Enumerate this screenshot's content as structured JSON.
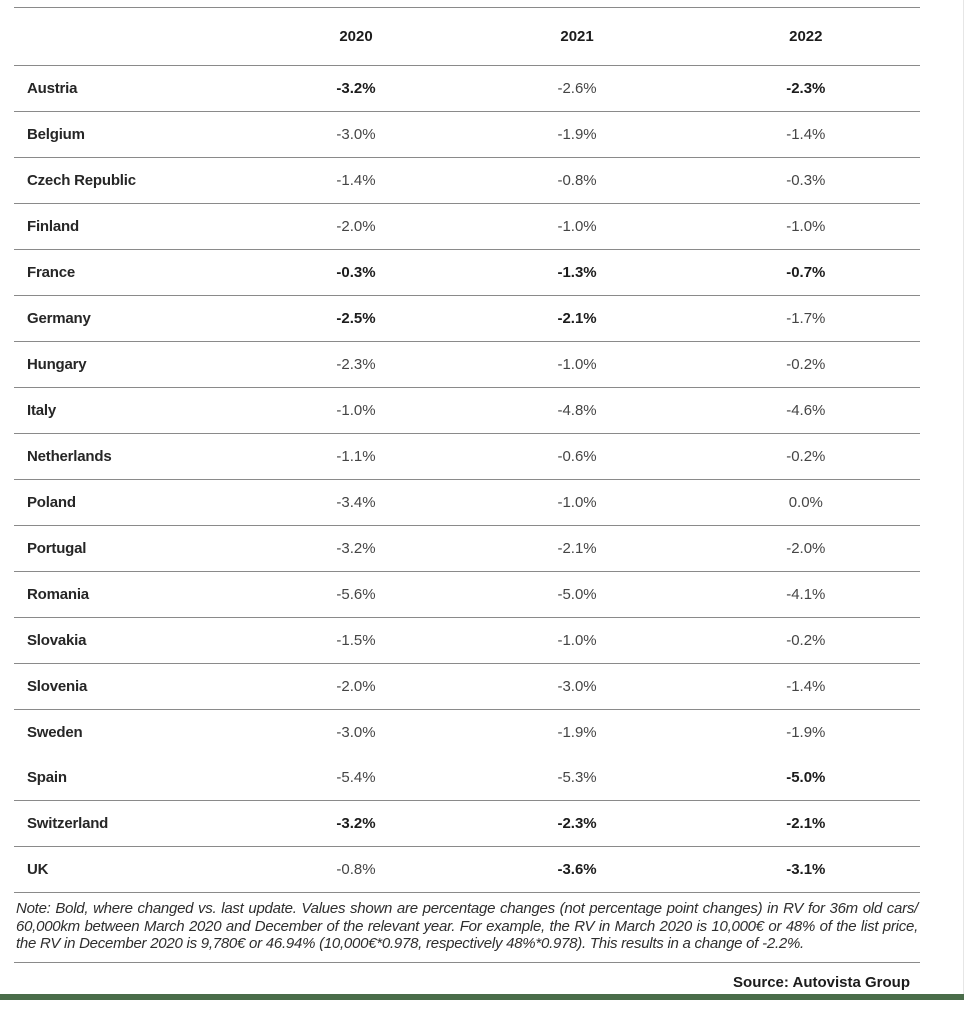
{
  "table": {
    "columns": [
      "2020",
      "2021",
      "2022"
    ],
    "rows": [
      {
        "country": "Austria",
        "values": [
          "-3.2%",
          "-2.6%",
          "-2.3%"
        ],
        "bold": [
          true,
          false,
          true
        ]
      },
      {
        "country": "Belgium",
        "values": [
          "-3.0%",
          "-1.9%",
          "-1.4%"
        ],
        "bold": [
          false,
          false,
          false
        ]
      },
      {
        "country": "Czech Republic",
        "values": [
          "-1.4%",
          "-0.8%",
          "-0.3%"
        ],
        "bold": [
          false,
          false,
          false
        ]
      },
      {
        "country": "Finland",
        "values": [
          "-2.0%",
          "-1.0%",
          "-1.0%"
        ],
        "bold": [
          false,
          false,
          false
        ]
      },
      {
        "country": "France",
        "values": [
          "-0.3%",
          "-1.3%",
          "-0.7%"
        ],
        "bold": [
          true,
          true,
          true
        ]
      },
      {
        "country": "Germany",
        "values": [
          "-2.5%",
          "-2.1%",
          "-1.7%"
        ],
        "bold": [
          true,
          true,
          false
        ]
      },
      {
        "country": "Hungary",
        "values": [
          "-2.3%",
          "-1.0%",
          "-0.2%"
        ],
        "bold": [
          false,
          false,
          false
        ]
      },
      {
        "country": "Italy",
        "values": [
          "-1.0%",
          "-4.8%",
          "-4.6%"
        ],
        "bold": [
          false,
          false,
          false
        ]
      },
      {
        "country": "Netherlands",
        "values": [
          "-1.1%",
          "-0.6%",
          "-0.2%"
        ],
        "bold": [
          false,
          false,
          false
        ]
      },
      {
        "country": "Poland",
        "values": [
          "-3.4%",
          "-1.0%",
          "0.0%"
        ],
        "bold": [
          false,
          false,
          false
        ]
      },
      {
        "country": "Portugal",
        "values": [
          "-3.2%",
          "-2.1%",
          "-2.0%"
        ],
        "bold": [
          false,
          false,
          false
        ]
      },
      {
        "country": "Romania",
        "values": [
          "-5.6%",
          "-5.0%",
          "-4.1%"
        ],
        "bold": [
          false,
          false,
          false
        ]
      },
      {
        "country": "Slovakia",
        "values": [
          "-1.5%",
          "-1.0%",
          "-0.2%"
        ],
        "bold": [
          false,
          false,
          false
        ]
      },
      {
        "country": "Slovenia",
        "values": [
          "-2.0%",
          "-3.0%",
          "-1.4%"
        ],
        "bold": [
          false,
          false,
          false
        ]
      },
      {
        "country": "Sweden",
        "values": [
          "-3.0%",
          "-1.9%",
          "-1.9%"
        ],
        "bold": [
          false,
          false,
          false
        ]
      },
      {
        "country": "Spain",
        "values": [
          "-5.4%",
          "-5.3%",
          "-5.0%"
        ],
        "bold": [
          false,
          false,
          true
        ],
        "no_separator_above": true
      },
      {
        "country": "Switzerland",
        "values": [
          "-3.2%",
          "-2.3%",
          "-2.1%"
        ],
        "bold": [
          true,
          true,
          true
        ]
      },
      {
        "country": "UK",
        "values": [
          "-0.8%",
          "-3.6%",
          "-3.1%"
        ],
        "bold": [
          false,
          true,
          true
        ]
      }
    ]
  },
  "note": "Note: Bold, where changed vs. last update. Values shown are percentage changes (not percentage point changes) in RV for 36m old cars/ 60,000km between March 2020 and December of the relevant year. For example, the RV in March 2020 is 10,000€ or 48% of the list price, the RV in December 2020 is 9,780€ or 46.94% (10,000€*0.978, respectively 48%*0.978). This results in a change of -2.2%.",
  "source": "Source: Autovista Group",
  "colors": {
    "accent_green": "#4a6d4a",
    "separator_gray": "#8a8a8a"
  },
  "chart_data": {
    "type": "table",
    "title": "",
    "categories": [
      "Austria",
      "Belgium",
      "Czech Republic",
      "Finland",
      "France",
      "Germany",
      "Hungary",
      "Italy",
      "Netherlands",
      "Poland",
      "Portugal",
      "Romania",
      "Slovakia",
      "Slovenia",
      "Sweden",
      "Spain",
      "Switzerland",
      "UK"
    ],
    "series": [
      {
        "name": "2020",
        "values": [
          -3.2,
          -3.0,
          -1.4,
          -2.0,
          -0.3,
          -2.5,
          -2.3,
          -1.0,
          -1.1,
          -3.4,
          -3.2,
          -5.6,
          -1.5,
          -2.0,
          -3.0,
          -5.4,
          -3.2,
          -0.8
        ]
      },
      {
        "name": "2021",
        "values": [
          -2.6,
          -1.9,
          -0.8,
          -1.0,
          -1.3,
          -2.1,
          -1.0,
          -4.8,
          -0.6,
          -1.0,
          -2.1,
          -5.0,
          -1.0,
          -3.0,
          -1.9,
          -5.3,
          -2.3,
          -3.6
        ]
      },
      {
        "name": "2022",
        "values": [
          -2.3,
          -1.4,
          -0.3,
          -1.0,
          -0.7,
          -1.7,
          -0.2,
          -4.6,
          -0.2,
          0.0,
          -2.0,
          -4.1,
          -0.2,
          -1.4,
          -1.9,
          -5.0,
          -2.1,
          -3.1
        ]
      }
    ],
    "units": "%",
    "bold_means": "changed vs. last update",
    "bold_flags": [
      [
        true,
        false,
        true
      ],
      [
        false,
        false,
        false
      ],
      [
        false,
        false,
        false
      ],
      [
        false,
        false,
        false
      ],
      [
        true,
        true,
        true
      ],
      [
        true,
        true,
        false
      ],
      [
        false,
        false,
        false
      ],
      [
        false,
        false,
        false
      ],
      [
        false,
        false,
        false
      ],
      [
        false,
        false,
        false
      ],
      [
        false,
        false,
        false
      ],
      [
        false,
        false,
        false
      ],
      [
        false,
        false,
        false
      ],
      [
        false,
        false,
        false
      ],
      [
        false,
        false,
        false
      ],
      [
        false,
        false,
        true
      ],
      [
        true,
        true,
        true
      ],
      [
        false,
        true,
        true
      ]
    ]
  }
}
